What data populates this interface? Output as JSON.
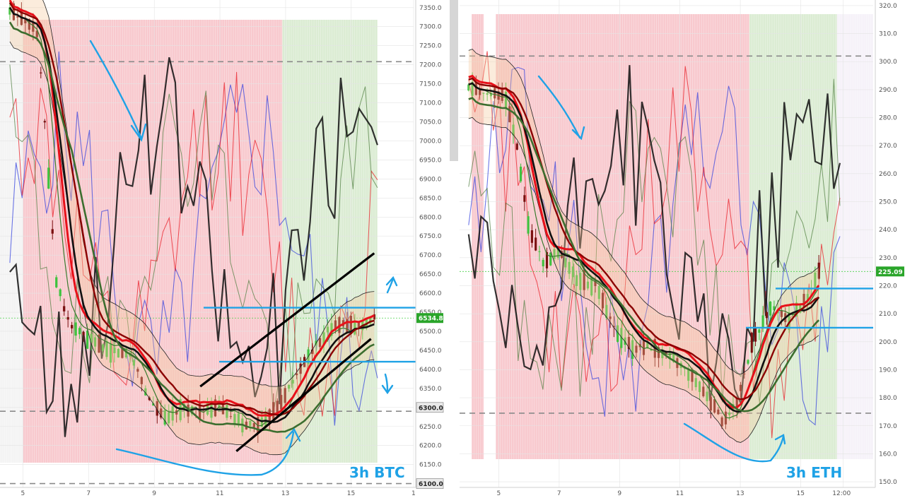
{
  "colors": {
    "bearish_zone": "#f5b7bd",
    "bullish_zone": "#cfe5c4",
    "annotation": "#1fa2e6",
    "candle_down": "#7a1010",
    "candle_up": "#3fc23f",
    "ma_red": "#e8101a",
    "ma_darkred": "#8b0000",
    "ma_black": "#111111",
    "ma_green": "#3a7a2e",
    "trendline": "#000000",
    "current_price": "#2aa52a",
    "reference": "#333333"
  },
  "chart_data": [
    {
      "type": "candlestick",
      "asset": "BTC",
      "timeframe": "3h",
      "label": "3h  BTC",
      "ylim": [
        6090,
        7370
      ],
      "yticks": [
        6150.0,
        6200.0,
        6250.0,
        6300.0,
        6350.0,
        6400.0,
        6450.0,
        6500.0,
        6550.0,
        6600.0,
        6650.0,
        6700.0,
        6750.0,
        6800.0,
        6850.0,
        6900.0,
        6950.0,
        7000.0,
        7050.0,
        7100.0,
        7150.0,
        7200.0,
        7250.0,
        7300.0,
        7350.0
      ],
      "xlim": [
        4.3,
        16.9
      ],
      "xticks": [
        "5",
        "7",
        "9",
        "11",
        "13",
        "15",
        "1"
      ],
      "xtick_values": [
        5,
        7,
        9,
        11,
        13,
        15,
        16.9
      ],
      "current_price": 6534.8,
      "current_price_label": "6534.8",
      "price_marks": [
        {
          "value": 6300.0,
          "label": "6300.0"
        },
        {
          "value": 6100.0,
          "label": "6100.0"
        }
      ],
      "dashed_levels": [
        7208,
        6290,
        6100
      ],
      "horizontal_levels": [
        6562,
        6420
      ],
      "trendlines": [
        {
          "from": [
            10.4,
            6355
          ],
          "to": [
            15.7,
            6705
          ]
        },
        {
          "from": [
            11.5,
            6185
          ],
          "to": [
            15.6,
            6480
          ]
        }
      ],
      "candles_ohlc_approx": [
        {
          "x": 4.6,
          "close": 7340
        },
        {
          "x": 5.4,
          "close": 7300
        },
        {
          "x": 5.6,
          "close": 7130
        },
        {
          "x": 6.0,
          "close": 6640
        },
        {
          "x": 6.4,
          "close": 6520
        },
        {
          "x": 7.0,
          "close": 6480
        },
        {
          "x": 7.6,
          "close": 6450
        },
        {
          "x": 8.3,
          "close": 6440
        },
        {
          "x": 8.8,
          "close": 6330
        },
        {
          "x": 9.3,
          "close": 6270
        },
        {
          "x": 9.8,
          "close": 6300
        },
        {
          "x": 10.4,
          "close": 6290
        },
        {
          "x": 11.0,
          "close": 6300
        },
        {
          "x": 11.6,
          "close": 6260
        },
        {
          "x": 12.2,
          "close": 6250
        },
        {
          "x": 12.8,
          "close": 6300
        },
        {
          "x": 13.3,
          "close": 6380
        },
        {
          "x": 13.9,
          "close": 6460
        },
        {
          "x": 14.5,
          "close": 6520
        },
        {
          "x": 15.1,
          "close": 6510
        },
        {
          "x": 15.7,
          "close": 6534.8
        }
      ]
    },
    {
      "type": "candlestick",
      "asset": "ETH",
      "timeframe": "3h",
      "label": "3h  ETH",
      "ylim": [
        148,
        322
      ],
      "yticks": [
        150.0,
        160.0,
        170.0,
        180.0,
        190.0,
        200.0,
        210.0,
        220.0,
        230.0,
        240.0,
        250.0,
        260.0,
        270.0,
        280.0,
        290.0,
        300.0,
        310.0,
        320.0
      ],
      "xlim": [
        3.7,
        17.4
      ],
      "xticks": [
        "5",
        "7",
        "9",
        "11",
        "13",
        "15",
        "12:00"
      ],
      "xtick_values": [
        5,
        7,
        9,
        11,
        13,
        15,
        16.4
      ],
      "current_price": 225.09,
      "current_price_label": "225.09",
      "dashed_levels": [
        302,
        174.5
      ],
      "horizontal_levels": [
        219,
        205
      ],
      "candles_ohlc_approx": [
        {
          "x": 4.0,
          "close": 290
        },
        {
          "x": 4.6,
          "close": 289
        },
        {
          "x": 5.2,
          "close": 288
        },
        {
          "x": 5.6,
          "close": 270
        },
        {
          "x": 6.0,
          "close": 240
        },
        {
          "x": 6.5,
          "close": 228
        },
        {
          "x": 7.0,
          "close": 232
        },
        {
          "x": 7.6,
          "close": 222
        },
        {
          "x": 8.2,
          "close": 220
        },
        {
          "x": 8.8,
          "close": 205
        },
        {
          "x": 9.4,
          "close": 198
        },
        {
          "x": 10.0,
          "close": 198
        },
        {
          "x": 10.6,
          "close": 195
        },
        {
          "x": 11.2,
          "close": 190
        },
        {
          "x": 11.8,
          "close": 182
        },
        {
          "x": 12.4,
          "close": 172
        },
        {
          "x": 12.9,
          "close": 178
        },
        {
          "x": 13.4,
          "close": 200
        },
        {
          "x": 14.0,
          "close": 212
        },
        {
          "x": 14.6,
          "close": 208
        },
        {
          "x": 15.2,
          "close": 215
        },
        {
          "x": 15.6,
          "close": 225.09
        }
      ]
    }
  ]
}
